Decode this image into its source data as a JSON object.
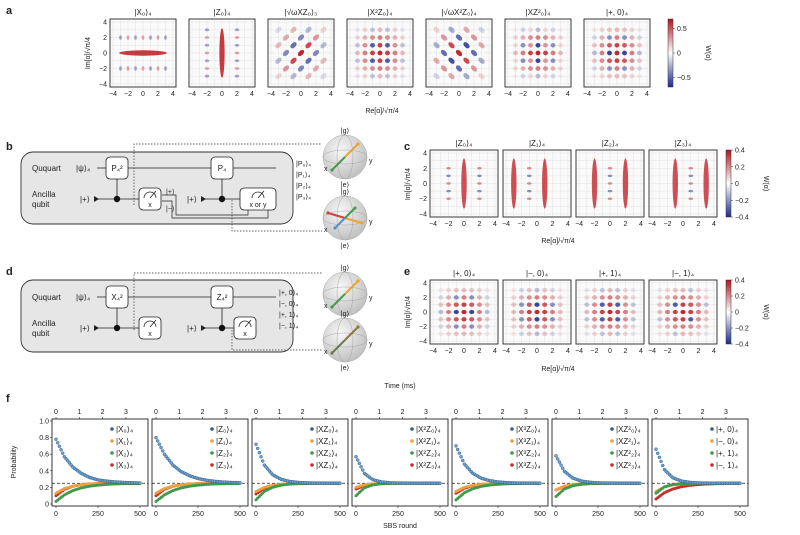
{
  "panel_labels": {
    "a": "a",
    "b": "b",
    "c": "c",
    "d": "d",
    "e": "e",
    "f": "f"
  },
  "colors": {
    "positive": "#c0262c",
    "negative": "#1b2a8c",
    "blue_series": "#6aa6d8",
    "orange_series": "#f0a040",
    "green_series": "#3f9a4a",
    "red_series": "#c3302b"
  },
  "wigner": {
    "xlabel": "Re[α]/√π/4",
    "ylabel": "Im[α]/√π/4",
    "cbar_label": "W(α)",
    "ticks": [
      "−4",
      "−2",
      "0",
      "2",
      "4"
    ],
    "a": {
      "titles": [
        "|X₀⟩₄",
        "|Z₀⟩₄",
        "|√ωXZ₀⟩₃",
        "|X²Z₀⟩₄",
        "|√ωX²Z₀⟩₄",
        "|XZ²₀⟩₄",
        "|+, 0⟩₄"
      ],
      "cbar_ticks": [
        "0.5",
        "0",
        "−0.5"
      ],
      "cbar_range": [
        -0.7,
        0.7
      ]
    },
    "c": {
      "titles": [
        "|Z₀⟩₄",
        "|Z₁⟩₄",
        "|Z₂⟩₄",
        "|Z₃⟩₄"
      ],
      "cbar_ticks": [
        "0.4",
        "0.2",
        "0",
        "−0.2",
        "−0.4"
      ],
      "cbar_range": [
        -0.4,
        0.4
      ]
    },
    "e": {
      "titles": [
        "|+, 0⟩₄",
        "|−, 0⟩₄",
        "|+, 1⟩₄",
        "|−, 1⟩₄"
      ],
      "cbar_ticks": [
        "0.4",
        "0.2",
        "0",
        "−0.2",
        "−0.4"
      ],
      "cbar_range": [
        -0.4,
        0.4
      ]
    }
  },
  "circuit_b": {
    "ququart": "Ququart",
    "ancilla": "Ancilla",
    "qubit": "qubit",
    "psi": "|ψ⟩₄",
    "plus1": "|+⟩",
    "plus2": "|+⟩",
    "gate1": "P₄²",
    "gate2": "P₄",
    "meas1": "x",
    "meas2": "x or y",
    "out_plus": "|+⟩",
    "out_minus": "|−⟩",
    "outputs": [
      {
        "label": "|P₀⟩₄",
        "color": "#5b8fc9"
      },
      {
        "label": "|P₁⟩₄",
        "color": "#e8a437"
      },
      {
        "label": "|P₂⟩₄",
        "color": "#4a9a52"
      },
      {
        "label": "|P₃⟩₄",
        "color": "#c9453b"
      }
    ]
  },
  "circuit_d": {
    "ququart": "Ququart",
    "ancilla": "Ancilla",
    "qubit": "qubit",
    "psi": "|ψ⟩₄",
    "plus1": "|+⟩",
    "plus2": "|+⟩",
    "gate1": "X₄²",
    "gate2": "Z₄²",
    "meas1": "x",
    "meas2": "x",
    "outputs": [
      {
        "label": "|+, 0⟩₄",
        "color": "#5b8fc9"
      },
      {
        "label": "|−, 0⟩₄",
        "color": "#e8a437"
      },
      {
        "label": "|+, 1⟩₄",
        "color": "#4a9a52"
      },
      {
        "label": "|−, 1⟩₄",
        "color": "#c9453b"
      }
    ]
  },
  "bloch": {
    "g": "|g⟩",
    "e": "|e⟩",
    "x": "x",
    "y": "y"
  },
  "chart_data": {
    "type": "scatter",
    "xlabel": "SBS round",
    "ylabel": "Probability",
    "top_xlabel": "Time (ms)",
    "x_ticks": [
      "0",
      "250",
      "500"
    ],
    "top_ticks": [
      "0",
      "1",
      "2",
      "3"
    ],
    "y_ticks": [
      "0",
      "0.2",
      "0.4",
      "0.6",
      "0.8",
      "1.0"
    ],
    "xlim": [
      0,
      540
    ],
    "ylim": [
      0,
      1.0
    ],
    "reference_line": 0.25,
    "x": [
      0,
      50,
      100,
      150,
      200,
      250,
      300,
      350,
      400,
      450,
      500
    ],
    "panels": [
      {
        "series": [
          {
            "name": "|X₀⟩₄",
            "color": "blue",
            "values": [
              0.78,
              0.57,
              0.445,
              0.37,
              0.32,
              0.29,
              0.276,
              0.266,
              0.26,
              0.256,
              0.253
            ]
          },
          {
            "name": "|X₁⟩₄",
            "color": "orange",
            "values": [
              0.13,
              0.186,
              0.216,
              0.232,
              0.24,
              0.245,
              0.247,
              0.248,
              0.249,
              0.25,
              0.25
            ]
          },
          {
            "name": "|X₂⟩₄",
            "color": "green",
            "values": [
              0.03,
              0.11,
              0.161,
              0.194,
              0.214,
              0.227,
              0.236,
              0.241,
              0.244,
              0.246,
              0.248
            ]
          },
          {
            "name": "|X₃⟩₄",
            "color": "red",
            "values": [
              0.1,
              0.177,
              0.214,
              0.232,
              0.241,
              0.246,
              0.248,
              0.249,
              0.25,
              0.25,
              0.25
            ]
          }
        ]
      },
      {
        "series": [
          {
            "name": "|Z₀⟩₄",
            "color": "blue",
            "values": [
              0.8,
              0.6,
              0.47,
              0.39,
              0.34,
              0.307,
              0.286,
              0.273,
              0.264,
              0.259,
              0.256
            ]
          },
          {
            "name": "|Z₁⟩₄",
            "color": "orange",
            "values": [
              0.13,
              0.186,
              0.216,
              0.232,
              0.24,
              0.245,
              0.247,
              0.248,
              0.249,
              0.25,
              0.25
            ]
          },
          {
            "name": "|Z₂⟩₄",
            "color": "green",
            "values": [
              0.03,
              0.11,
              0.161,
              0.194,
              0.214,
              0.227,
              0.236,
              0.241,
              0.244,
              0.246,
              0.248
            ]
          },
          {
            "name": "|Z₃⟩₄",
            "color": "red",
            "values": [
              0.1,
              0.177,
              0.214,
              0.232,
              0.241,
              0.246,
              0.248,
              0.249,
              0.25,
              0.25,
              0.25
            ]
          }
        ]
      },
      {
        "series": [
          {
            "name": "|XZ₀⟩₄",
            "color": "blue",
            "values": [
              0.72,
              0.468,
              0.351,
              0.297,
              0.272,
              0.26,
              0.255,
              0.252,
              0.251,
              0.25,
              0.25
            ]
          },
          {
            "name": "|XZ₁⟩₄",
            "color": "orange",
            "values": [
              0.15,
              0.2,
              0.226,
              0.238,
              0.244,
              0.247,
              0.249,
              0.25,
              0.25,
              0.25,
              0.25
            ]
          },
          {
            "name": "|XZ₂⟩₄",
            "color": "green",
            "values": [
              0.05,
              0.152,
              0.202,
              0.227,
              0.239,
              0.244,
              0.247,
              0.249,
              0.25,
              0.25,
              0.25
            ]
          },
          {
            "name": "|XZ₃⟩₄",
            "color": "red",
            "values": [
              0.12,
              0.19,
              0.222,
              0.236,
              0.243,
              0.247,
              0.249,
              0.25,
              0.25,
              0.25,
              0.25
            ]
          }
        ]
      },
      {
        "series": [
          {
            "name": "|X²Z₀⟩₄",
            "color": "blue",
            "values": [
              0.57,
              0.368,
              0.293,
              0.266,
              0.256,
              0.252,
              0.251,
              0.25,
              0.25,
              0.25,
              0.25
            ]
          },
          {
            "name": "|X²Z₁⟩₄",
            "color": "orange",
            "values": [
              0.2,
              0.232,
              0.243,
              0.247,
              0.249,
              0.25,
              0.25,
              0.25,
              0.25,
              0.25,
              0.25
            ]
          },
          {
            "name": "|X²Z₂⟩₄",
            "color": "green",
            "values": [
              0.1,
              0.195,
              0.23,
              0.243,
              0.247,
              0.249,
              0.25,
              0.25,
              0.25,
              0.25,
              0.25
            ]
          },
          {
            "name": "|X²Z₃⟩₄",
            "color": "red",
            "values": [
              0.18,
              0.224,
              0.24,
              0.246,
              0.249,
              0.25,
              0.25,
              0.25,
              0.25,
              0.25,
              0.25
            ]
          }
        ]
      },
      {
        "series": [
          {
            "name": "|X³Z₀⟩₄",
            "color": "blue",
            "values": [
              0.7,
              0.481,
              0.369,
              0.311,
              0.281,
              0.266,
              0.258,
              0.254,
              0.252,
              0.251,
              0.25
            ]
          },
          {
            "name": "|X³Z₁⟩₄",
            "color": "orange",
            "values": [
              0.15,
              0.201,
              0.226,
              0.238,
              0.244,
              0.247,
              0.249,
              0.25,
              0.25,
              0.25,
              0.25
            ]
          },
          {
            "name": "|X³Z₂⟩₄",
            "color": "green",
            "values": [
              0.05,
              0.135,
              0.184,
              0.212,
              0.228,
              0.237,
              0.243,
              0.246,
              0.248,
              0.249,
              0.249
            ]
          },
          {
            "name": "|X³Z₃⟩₄",
            "color": "red",
            "values": [
              0.13,
              0.19,
              0.221,
              0.236,
              0.243,
              0.247,
              0.248,
              0.249,
              0.25,
              0.25,
              0.25
            ]
          }
        ]
      },
      {
        "series": [
          {
            "name": "|XZ²₀⟩₄",
            "color": "blue",
            "values": [
              0.58,
              0.394,
              0.312,
              0.277,
              0.262,
              0.255,
              0.252,
              0.251,
              0.25,
              0.25,
              0.25
            ]
          },
          {
            "name": "|XZ²₁⟩₄",
            "color": "orange",
            "values": [
              0.17,
              0.215,
              0.235,
              0.243,
              0.247,
              0.249,
              0.25,
              0.25,
              0.25,
              0.25,
              0.25
            ]
          },
          {
            "name": "|XZ²₂⟩₄",
            "color": "green",
            "values": [
              0.09,
              0.18,
              0.22,
              0.237,
              0.244,
              0.248,
              0.249,
              0.25,
              0.25,
              0.25,
              0.25
            ]
          },
          {
            "name": "|XZ²₃⟩₄",
            "color": "red",
            "values": [
              0.17,
              0.21,
              0.233,
              0.242,
              0.247,
              0.249,
              0.25,
              0.25,
              0.25,
              0.25,
              0.25
            ]
          }
        ]
      },
      {
        "series": [
          {
            "name": "|+, 0⟩₄",
            "color": "blue",
            "values": [
              0.66,
              0.415,
              0.316,
              0.277,
              0.261,
              0.254,
              0.252,
              0.25,
              0.25,
              0.25,
              0.25
            ]
          },
          {
            "name": "|−, 0⟩₄",
            "color": "orange",
            "values": [
              0.15,
              0.206,
              0.231,
              0.242,
              0.246,
              0.248,
              0.249,
              0.25,
              0.25,
              0.25,
              0.25
            ]
          },
          {
            "name": "|+, 1⟩₄",
            "color": "green",
            "values": [
              0.13,
              0.206,
              0.234,
              0.244,
              0.248,
              0.249,
              0.25,
              0.25,
              0.25,
              0.25,
              0.25
            ]
          },
          {
            "name": "|−, 1⟩₄",
            "color": "red",
            "values": [
              0.06,
              0.135,
              0.18,
              0.208,
              0.224,
              0.234,
              0.24,
              0.244,
              0.246,
              0.248,
              0.249
            ]
          }
        ]
      }
    ]
  }
}
